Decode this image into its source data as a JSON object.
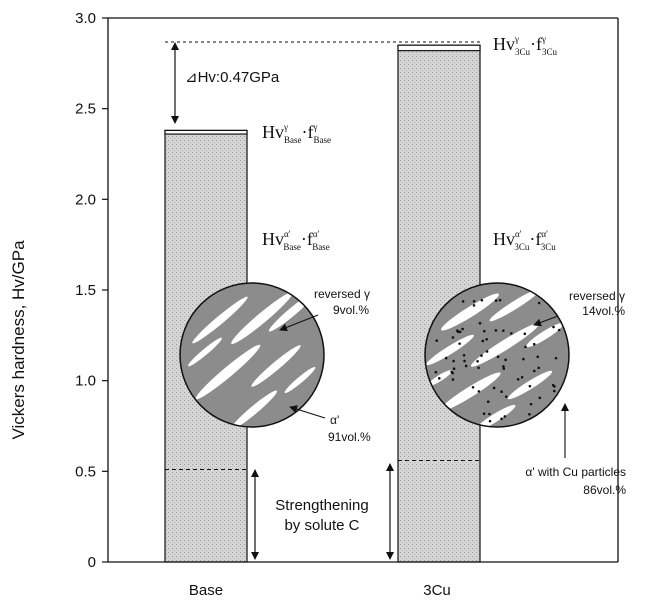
{
  "chart_data": {
    "type": "bar",
    "categories": [
      "Base",
      "3Cu"
    ],
    "values": [
      2.38,
      2.85
    ],
    "solute_c_values": [
      0.51,
      0.56
    ],
    "gamma_layer_bottom": [
      2.36,
      2.82
    ],
    "ylabel": "Vickers hardness, Hv/GPa",
    "xlabel": "",
    "ylim": [
      0,
      3.0
    ],
    "yticks": [
      "0",
      "0.5",
      "1.0",
      "1.5",
      "2.0",
      "2.5",
      "3.0"
    ],
    "ytick_values": [
      0,
      0.5,
      1.0,
      1.5,
      2.0,
      2.5,
      3.0
    ],
    "grid": false,
    "annotations": {
      "delta_hv": "⊿Hv:0.47GPa",
      "strengthening_line1": "Strengthening",
      "strengthening_line2": "by solute C",
      "base": {
        "gamma_formula": {
          "main1": "Hv",
          "sup1": "γ",
          "sub1": "Base",
          "dot": "·f",
          "sup2": "γ",
          "sub2": "Base"
        },
        "alpha_formula": {
          "main1": "Hv",
          "sup1": "α'",
          "sub1": "Base",
          "dot": "·f",
          "sup2": "α'",
          "sub2": "Base"
        },
        "reversed_label": "reversed γ",
        "reversed_vol": "9vol.%",
        "alpha_label": "α'",
        "alpha_vol": "91vol.%"
      },
      "cu": {
        "gamma_formula": {
          "main1": "Hv",
          "sup1": "γ",
          "sub1": "3Cu",
          "dot": "·f",
          "sup2": "γ",
          "sub2": "3Cu"
        },
        "alpha_formula": {
          "main1": "Hv",
          "sup1": "α'",
          "sub1": "3Cu",
          "dot": "·f",
          "sup2": "α'",
          "sub2": "3Cu"
        },
        "reversed_label": "reversed γ",
        "reversed_vol": "14vol.%",
        "alpha_label": "α' with Cu particles",
        "alpha_vol": "86vol.%"
      }
    }
  },
  "colors": {
    "bar_fill": "#d4d4d4",
    "circle_fill": "#8c8c8c",
    "lath_fill": "#ffffff",
    "ink": "#111111"
  }
}
